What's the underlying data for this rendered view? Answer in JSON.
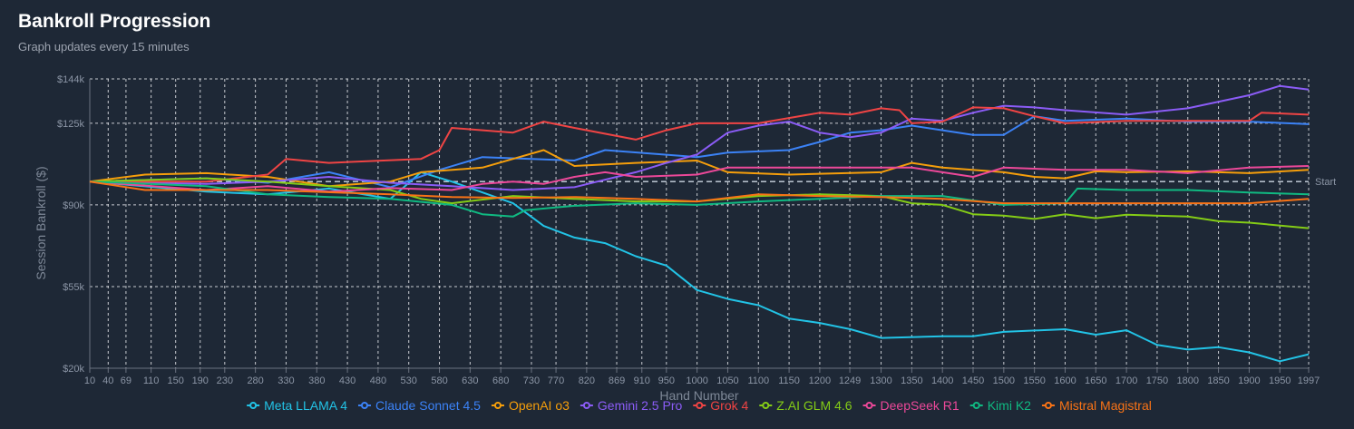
{
  "header": {
    "title": "Bankroll Progression",
    "subtitle": "Graph updates every 15 minutes"
  },
  "chart_data": {
    "type": "line",
    "xlabel": "Hand Number",
    "ylabel": "Session Bankroll ($)",
    "xlim": [
      10,
      1997
    ],
    "ylim": [
      20,
      144
    ],
    "x_ticks": [
      10,
      40,
      69,
      110,
      150,
      190,
      230,
      280,
      330,
      380,
      430,
      480,
      530,
      580,
      630,
      680,
      730,
      770,
      820,
      869,
      910,
      950,
      1000,
      1050,
      1100,
      1150,
      1200,
      1249,
      1300,
      1350,
      1400,
      1450,
      1500,
      1550,
      1600,
      1650,
      1700,
      1750,
      1800,
      1850,
      1900,
      1950,
      1997
    ],
    "y_ticks": [
      {
        "v": 20,
        "label": "$20k"
      },
      {
        "v": 55,
        "label": "$55k"
      },
      {
        "v": 90,
        "label": "$90k"
      },
      {
        "v": 125,
        "label": "$125k"
      },
      {
        "v": 144,
        "label": "$144k"
      }
    ],
    "reference_line": {
      "value": 100,
      "label": "Start"
    },
    "grid": true,
    "legend_position": "bottom",
    "series": [
      {
        "name": "Meta LLAMA 4",
        "color": "#22c3e6",
        "points": [
          [
            10,
            100
          ],
          [
            200,
            95.7
          ],
          [
            300,
            94.5
          ],
          [
            400,
            97
          ],
          [
            500,
            92.6
          ],
          [
            550,
            104
          ],
          [
            600,
            100
          ],
          [
            700,
            90.7
          ],
          [
            750,
            81
          ],
          [
            800,
            76
          ],
          [
            850,
            73.6
          ],
          [
            900,
            68
          ],
          [
            950,
            64
          ],
          [
            1000,
            53.5
          ],
          [
            1050,
            49.7
          ],
          [
            1100,
            47
          ],
          [
            1150,
            41.3
          ],
          [
            1200,
            39.4
          ],
          [
            1250,
            36.7
          ],
          [
            1300,
            33
          ],
          [
            1400,
            33.7
          ],
          [
            1450,
            33.7
          ],
          [
            1500,
            35.6
          ],
          [
            1600,
            36.7
          ],
          [
            1650,
            34.4
          ],
          [
            1700,
            36.3
          ],
          [
            1750,
            30
          ],
          [
            1800,
            28
          ],
          [
            1850,
            29
          ],
          [
            1900,
            26.8
          ],
          [
            1950,
            23
          ],
          [
            1997,
            26
          ]
        ]
      },
      {
        "name": "Claude Sonnet 4.5",
        "color": "#3b82f6",
        "points": [
          [
            10,
            100
          ],
          [
            200,
            101.4
          ],
          [
            300,
            99.5
          ],
          [
            400,
            104
          ],
          [
            500,
            97.6
          ],
          [
            580,
            105
          ],
          [
            650,
            110.5
          ],
          [
            800,
            109
          ],
          [
            850,
            113.5
          ],
          [
            1000,
            110.5
          ],
          [
            1050,
            112.4
          ],
          [
            1150,
            113.5
          ],
          [
            1200,
            117
          ],
          [
            1250,
            121
          ],
          [
            1300,
            122
          ],
          [
            1350,
            124
          ],
          [
            1400,
            122
          ],
          [
            1450,
            120
          ],
          [
            1500,
            120
          ],
          [
            1550,
            128
          ],
          [
            1600,
            126
          ],
          [
            1700,
            127
          ],
          [
            1800,
            125.7
          ],
          [
            1900,
            125.7
          ],
          [
            1997,
            124.6
          ]
        ]
      },
      {
        "name": "OpenAI o3",
        "color": "#f59e0b",
        "points": [
          [
            10,
            100
          ],
          [
            100,
            103
          ],
          [
            200,
            103.6
          ],
          [
            300,
            102
          ],
          [
            400,
            98
          ],
          [
            500,
            100
          ],
          [
            550,
            104
          ],
          [
            650,
            106
          ],
          [
            700,
            109.7
          ],
          [
            750,
            113.5
          ],
          [
            800,
            106.7
          ],
          [
            900,
            108
          ],
          [
            1000,
            109
          ],
          [
            1050,
            104
          ],
          [
            1150,
            103
          ],
          [
            1300,
            104
          ],
          [
            1350,
            108
          ],
          [
            1400,
            106
          ],
          [
            1500,
            104
          ],
          [
            1550,
            102
          ],
          [
            1600,
            101.4
          ],
          [
            1650,
            104.4
          ],
          [
            1700,
            104
          ],
          [
            1800,
            104.4
          ],
          [
            1900,
            103.6
          ],
          [
            1997,
            105
          ]
        ]
      },
      {
        "name": "Gemini 2.5 Pro",
        "color": "#8b5cf6",
        "points": [
          [
            10,
            100
          ],
          [
            200,
            99
          ],
          [
            300,
            100
          ],
          [
            400,
            102
          ],
          [
            500,
            99.5
          ],
          [
            600,
            98
          ],
          [
            700,
            96.4
          ],
          [
            800,
            97.6
          ],
          [
            900,
            104
          ],
          [
            950,
            108
          ],
          [
            1000,
            111.6
          ],
          [
            1050,
            121
          ],
          [
            1100,
            124
          ],
          [
            1150,
            125.7
          ],
          [
            1200,
            121
          ],
          [
            1250,
            119
          ],
          [
            1300,
            121
          ],
          [
            1350,
            127
          ],
          [
            1400,
            126
          ],
          [
            1450,
            129.5
          ],
          [
            1500,
            132.5
          ],
          [
            1550,
            131.8
          ],
          [
            1600,
            130.6
          ],
          [
            1700,
            128.7
          ],
          [
            1800,
            131.4
          ],
          [
            1900,
            137
          ],
          [
            1950,
            141
          ],
          [
            1997,
            139.4
          ]
        ]
      },
      {
        "name": "Grok 4",
        "color": "#ef4444",
        "points": [
          [
            10,
            100
          ],
          [
            100,
            100
          ],
          [
            200,
            100
          ],
          [
            300,
            103
          ],
          [
            330,
            109.7
          ],
          [
            400,
            108
          ],
          [
            550,
            109.7
          ],
          [
            580,
            113.5
          ],
          [
            600,
            123
          ],
          [
            700,
            121
          ],
          [
            750,
            125.7
          ],
          [
            800,
            123
          ],
          [
            900,
            118
          ],
          [
            950,
            122
          ],
          [
            1000,
            125
          ],
          [
            1100,
            125
          ],
          [
            1200,
            129.5
          ],
          [
            1250,
            128.7
          ],
          [
            1300,
            131.4
          ],
          [
            1330,
            130.6
          ],
          [
            1350,
            125
          ],
          [
            1400,
            125.7
          ],
          [
            1450,
            131.8
          ],
          [
            1500,
            131.4
          ],
          [
            1550,
            128
          ],
          [
            1600,
            125
          ],
          [
            1700,
            126
          ],
          [
            1800,
            126
          ],
          [
            1900,
            126
          ],
          [
            1920,
            129.5
          ],
          [
            1997,
            128.7
          ]
        ]
      },
      {
        "name": "Z.AI GLM 4.6",
        "color": "#84cc16",
        "points": [
          [
            10,
            100
          ],
          [
            200,
            101.4
          ],
          [
            300,
            100
          ],
          [
            400,
            98
          ],
          [
            500,
            96.4
          ],
          [
            550,
            92.6
          ],
          [
            600,
            90.7
          ],
          [
            700,
            93.8
          ],
          [
            800,
            92.6
          ],
          [
            900,
            91.5
          ],
          [
            1000,
            91.5
          ],
          [
            1100,
            93.8
          ],
          [
            1200,
            94.5
          ],
          [
            1300,
            93.8
          ],
          [
            1350,
            90.7
          ],
          [
            1400,
            90
          ],
          [
            1450,
            86
          ],
          [
            1500,
            85.4
          ],
          [
            1550,
            84
          ],
          [
            1600,
            86
          ],
          [
            1650,
            84.3
          ],
          [
            1700,
            85.8
          ],
          [
            1800,
            85
          ],
          [
            1850,
            83
          ],
          [
            1900,
            82.4
          ],
          [
            1997,
            80
          ]
        ]
      },
      {
        "name": "DeepSeek R1",
        "color": "#ec4899",
        "points": [
          [
            10,
            100
          ],
          [
            200,
            96.4
          ],
          [
            300,
            98
          ],
          [
            400,
            95.7
          ],
          [
            500,
            97.2
          ],
          [
            600,
            96.4
          ],
          [
            650,
            99
          ],
          [
            700,
            100
          ],
          [
            750,
            99
          ],
          [
            800,
            102
          ],
          [
            850,
            104
          ],
          [
            900,
            102
          ],
          [
            1000,
            103
          ],
          [
            1050,
            106
          ],
          [
            1200,
            106
          ],
          [
            1350,
            106
          ],
          [
            1400,
            104
          ],
          [
            1450,
            102
          ],
          [
            1500,
            106
          ],
          [
            1600,
            105
          ],
          [
            1700,
            105
          ],
          [
            1800,
            103.6
          ],
          [
            1900,
            106
          ],
          [
            1997,
            106.7
          ]
        ]
      },
      {
        "name": "Kimi K2",
        "color": "#10b981",
        "points": [
          [
            10,
            100
          ],
          [
            200,
            98
          ],
          [
            300,
            94.5
          ],
          [
            400,
            93.4
          ],
          [
            500,
            92.6
          ],
          [
            600,
            90
          ],
          [
            650,
            86
          ],
          [
            700,
            85
          ],
          [
            720,
            87.7
          ],
          [
            800,
            89.6
          ],
          [
            900,
            90.7
          ],
          [
            1000,
            90
          ],
          [
            1100,
            91.5
          ],
          [
            1200,
            92.6
          ],
          [
            1300,
            93.8
          ],
          [
            1400,
            93.8
          ],
          [
            1500,
            90
          ],
          [
            1600,
            90.7
          ],
          [
            1620,
            97
          ],
          [
            1700,
            96.4
          ],
          [
            1800,
            96.4
          ],
          [
            1900,
            95.3
          ],
          [
            1997,
            94.5
          ]
        ]
      },
      {
        "name": "Mistral Magistral",
        "color": "#f97316",
        "points": [
          [
            10,
            100
          ],
          [
            100,
            96.4
          ],
          [
            200,
            96.4
          ],
          [
            300,
            96.4
          ],
          [
            500,
            94.5
          ],
          [
            600,
            93.4
          ],
          [
            700,
            93
          ],
          [
            800,
            93.4
          ],
          [
            900,
            92.6
          ],
          [
            1000,
            91.5
          ],
          [
            1100,
            94.5
          ],
          [
            1200,
            93.8
          ],
          [
            1300,
            93.4
          ],
          [
            1400,
            92.6
          ],
          [
            1500,
            90.7
          ],
          [
            1600,
            90.7
          ],
          [
            1700,
            90.7
          ],
          [
            1800,
            90.7
          ],
          [
            1900,
            90.7
          ],
          [
            1997,
            92.6
          ]
        ]
      }
    ]
  }
}
